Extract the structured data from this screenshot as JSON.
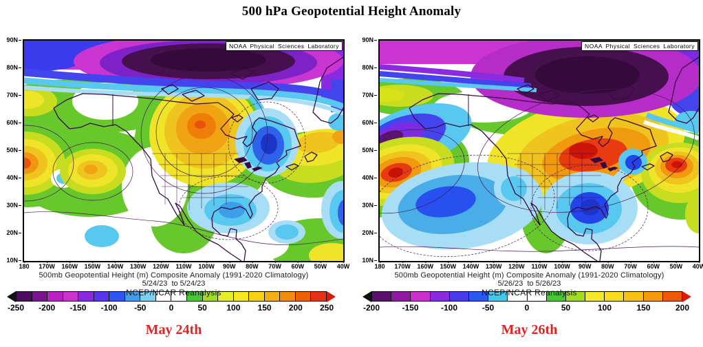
{
  "title": "500 hPa Geopotential Height Anomaly",
  "noaa_label": "NOAA Physical Sciences Laboratory",
  "watermark": "NCEP/NCAR Reanalysis",
  "lat_labels": [
    "90N",
    "80N",
    "70N",
    "60N",
    "50N",
    "40N",
    "30N",
    "20N",
    "10N"
  ],
  "lon_labels": [
    "180",
    "170W",
    "160W",
    "150W",
    "140W",
    "130W",
    "120W",
    "110W",
    "100W",
    "90W",
    "80W",
    "70W",
    "60W",
    "50W",
    "40W"
  ],
  "accent_colors": {
    "date_label": "#e42222",
    "coastline": "#38093f"
  },
  "panels": [
    {
      "caption_line1": "500mb Geopotential Height (m) Composite Anomaly (1991-2020 Climatology)",
      "caption_line2": "5/24/23  to 5/24/23",
      "date_label": "May 24th",
      "colorbar": {
        "ticks": [
          "-250",
          "-200",
          "-150",
          "-100",
          "-50",
          "0",
          "50",
          "100",
          "150",
          "200",
          "250"
        ],
        "segment_colors": [
          "#4a0e5c",
          "#7c1490",
          "#b81fc4",
          "#cc33cc",
          "#8a2be2",
          "#5a35ee",
          "#2e55f2",
          "#3e9eec",
          "#7ad2f2",
          "#ffffff",
          "#ffffff",
          "#46c832",
          "#a2dc20",
          "#e6ee28",
          "#f6e820",
          "#f6d214",
          "#f4ae10",
          "#f28c0a",
          "#ee6006",
          "#e63214"
        ],
        "left_arrow_color": "#111111",
        "right_arrow_color": "#e01808"
      }
    },
    {
      "caption_line1": "500mb Geopotential Height (m) Composite Anomaly (1991-2020 Climatology)",
      "caption_line2": "5/26/23  to 5/26/23",
      "date_label": "May 26th",
      "colorbar": {
        "ticks": [
          "-200",
          "-150",
          "-100",
          "-50",
          "0",
          "50",
          "100",
          "150",
          "200"
        ],
        "segment_colors": [
          "#5c1070",
          "#9218a4",
          "#cc2fd0",
          "#8a2be2",
          "#4a3aee",
          "#2a58f0",
          "#45c8f0",
          "#ffffff",
          "#ffffff",
          "#46c832",
          "#a2dc20",
          "#f2ea28",
          "#f6dc1c",
          "#f6c214",
          "#f49a0e",
          "#ee5a08"
        ],
        "left_arrow_color": "#111111",
        "right_arrow_color": "#e01808"
      }
    }
  ],
  "chart_data": [
    {
      "type": "heatmap",
      "title": "500mb Geopotential Height (m) Composite Anomaly (1991-2020 Climatology)",
      "subtitle": "5/24/23 to 5/24/23",
      "date_label": "May 24th",
      "source_label": "NCEP/NCAR Reanalysis",
      "units": "m",
      "x": {
        "label": "longitude",
        "ticks": [
          "180",
          "170W",
          "160W",
          "150W",
          "140W",
          "130W",
          "120W",
          "110W",
          "100W",
          "90W",
          "80W",
          "70W",
          "60W",
          "50W",
          "40W"
        ]
      },
      "y": {
        "label": "latitude",
        "ticks": [
          "90N",
          "80N",
          "70N",
          "60N",
          "50N",
          "40N",
          "30N",
          "20N",
          "10N"
        ]
      },
      "colorbar": {
        "range": [
          -250,
          250
        ],
        "tick_step": 50,
        "segment_step": 25
      },
      "anomaly_centers": [
        {
          "sign": "negative",
          "approx_location": "Arctic ~84N 95W",
          "approx_value_m": -250
        },
        {
          "sign": "positive",
          "approx_location": "central Canada ~59N 97W",
          "approx_value_m": 200
        },
        {
          "sign": "negative",
          "approx_location": "eastern Canada / Quebec ~48N 68W",
          "approx_value_m": -150
        },
        {
          "sign": "positive",
          "approx_location": "western North Pacific ~45N 180",
          "approx_value_m": 225
        },
        {
          "sign": "positive",
          "approx_location": "northeast Pacific ~43N 149W",
          "approx_value_m": 150
        },
        {
          "sign": "negative",
          "approx_location": "southeastern US ~30N 85W",
          "approx_value_m": -75
        },
        {
          "sign": "negative",
          "approx_location": "subtropical Atlantic ~30N 40W",
          "approx_value_m": -100
        }
      ]
    },
    {
      "type": "heatmap",
      "title": "500mb Geopotential Height (m) Composite Anomaly (1991-2020 Climatology)",
      "subtitle": "5/26/23 to 5/26/23",
      "date_label": "May 26th",
      "source_label": "NCEP/NCAR Reanalysis",
      "units": "m",
      "x": {
        "label": "longitude",
        "ticks": [
          "180",
          "170W",
          "160W",
          "150W",
          "140W",
          "130W",
          "120W",
          "110W",
          "100W",
          "90W",
          "80W",
          "70W",
          "60W",
          "50W",
          "40W"
        ]
      },
      "y": {
        "label": "latitude",
        "ticks": [
          "90N",
          "80N",
          "70N",
          "60N",
          "50N",
          "40N",
          "30N",
          "20N",
          "10N"
        ]
      },
      "colorbar": {
        "range": [
          -200,
          200
        ],
        "tick_step": 50,
        "segment_step": 25
      },
      "anomaly_centers": [
        {
          "sign": "negative",
          "approx_location": "Arctic / Canadian Archipelago ~78N 85W",
          "approx_value_m": -200
        },
        {
          "sign": "positive",
          "approx_location": "Hudson Bay / eastern Canada ~52N 86W",
          "approx_value_m": 200
        },
        {
          "sign": "positive",
          "approx_location": "North Atlantic ~45N 42W",
          "approx_value_m": 200
        },
        {
          "sign": "positive",
          "approx_location": "North Pacific ~43N 170W",
          "approx_value_m": 200
        },
        {
          "sign": "negative",
          "approx_location": "Bering Sea ~57N 172W",
          "approx_value_m": -150
        },
        {
          "sign": "negative",
          "approx_location": "central Pacific ~32N 148W",
          "approx_value_m": -125
        },
        {
          "sign": "negative",
          "approx_location": "southeastern US ~30N 82W",
          "approx_value_m": -150
        },
        {
          "sign": "negative",
          "approx_location": "New England ~44N 70W",
          "approx_value_m": -100
        }
      ]
    }
  ]
}
